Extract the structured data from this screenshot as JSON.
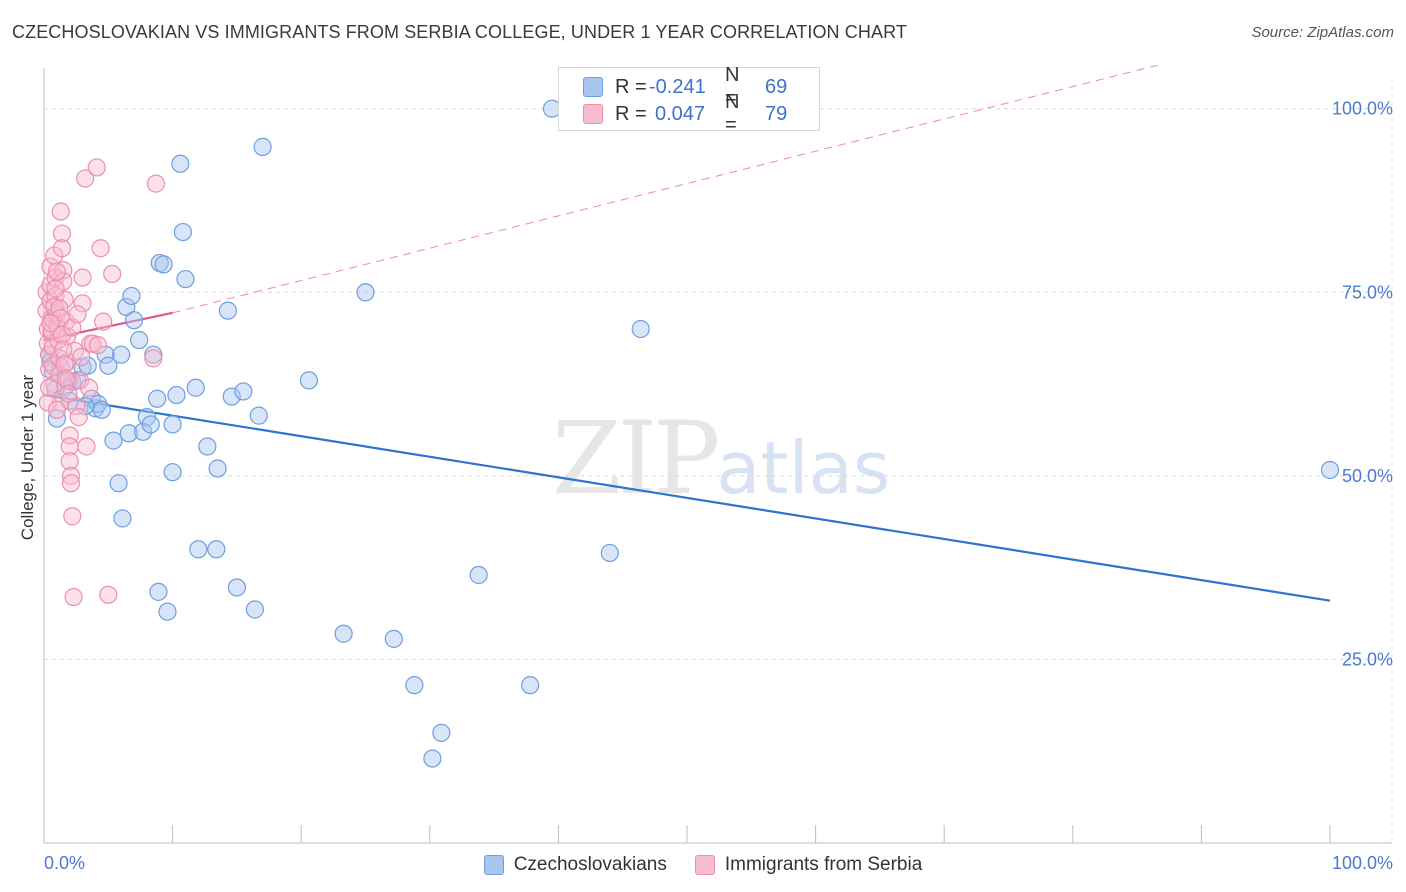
{
  "header": {
    "title": "CZECHOSLOVAKIAN VS IMMIGRANTS FROM SERBIA COLLEGE, UNDER 1 YEAR CORRELATION CHART",
    "source": "Source: ZipAtlas.com"
  },
  "watermark": {
    "zip": "ZIP",
    "atlas": "atlas"
  },
  "legend": {
    "rows": [
      {
        "r_label": "R =",
        "r_value": "-0.241",
        "n_label": "N =",
        "n_value": "69",
        "color": "#a8c6f0",
        "border": "#6e9ee0"
      },
      {
        "r_label": "R =",
        "r_value": "0.047",
        "n_label": "N =",
        "n_value": "79",
        "color": "#f8bcd0",
        "border": "#ec8fae"
      }
    ]
  },
  "bottom_legend": {
    "items": [
      {
        "label": "Czechoslovakians",
        "color": "#a8c6f0",
        "border": "#6e9ee0"
      },
      {
        "label": "Immigrants from Serbia",
        "color": "#f8bcd0",
        "border": "#ec8fae"
      }
    ]
  },
  "chart_data": {
    "type": "scatter",
    "title": "CZECHOSLOVAKIAN VS IMMIGRANTS FROM SERBIA COLLEGE, UNDER 1 YEAR CORRELATION CHART",
    "xlabel": "",
    "ylabel": "College, Under 1 year",
    "xlim": [
      0,
      100
    ],
    "ylim": [
      0,
      105
    ],
    "x_tick_labels": [
      "0.0%",
      "100.0%"
    ],
    "y_tick_labels": [
      "25.0%",
      "50.0%",
      "75.0%",
      "100.0%"
    ],
    "y_ticks": [
      25,
      50,
      75,
      100
    ],
    "series": [
      {
        "name": "Czechoslovakians",
        "color": "#6e9ee0",
        "fill": "#a8c6f0",
        "trend": {
          "x": [
            0,
            100
          ],
          "y": [
            61.0,
            33.0
          ],
          "color": "#2f73d0",
          "dashed_extension": false
        },
        "points": [
          [
            0.4,
            66.5
          ],
          [
            0.7,
            64.2
          ],
          [
            1.0,
            57.8
          ],
          [
            1.3,
            64.8
          ],
          [
            1.6,
            62.0
          ],
          [
            2.0,
            60.2
          ],
          [
            2.2,
            62.8
          ],
          [
            2.6,
            63.0
          ],
          [
            3.0,
            64.8
          ],
          [
            3.4,
            65.0
          ],
          [
            3.7,
            60.5
          ],
          [
            4.0,
            59.2
          ],
          [
            4.2,
            59.8
          ],
          [
            4.5,
            59.0
          ],
          [
            4.8,
            66.5
          ],
          [
            5.0,
            65.0
          ],
          [
            5.4,
            54.8
          ],
          [
            5.8,
            49.0
          ],
          [
            6.0,
            66.5
          ],
          [
            6.1,
            44.2
          ],
          [
            6.4,
            73.0
          ],
          [
            6.6,
            55.8
          ],
          [
            6.8,
            74.5
          ],
          [
            7.0,
            71.2
          ],
          [
            7.4,
            68.5
          ],
          [
            7.7,
            56.0
          ],
          [
            8.0,
            58.0
          ],
          [
            8.3,
            57.0
          ],
          [
            8.5,
            66.5
          ],
          [
            8.8,
            60.5
          ],
          [
            8.9,
            34.2
          ],
          [
            9.0,
            79.0
          ],
          [
            9.3,
            78.8
          ],
          [
            9.6,
            31.5
          ],
          [
            10.0,
            57.0
          ],
          [
            10.0,
            50.5
          ],
          [
            10.3,
            61.0
          ],
          [
            10.6,
            92.5
          ],
          [
            10.8,
            83.2
          ],
          [
            11.0,
            76.8
          ],
          [
            11.8,
            62.0
          ],
          [
            12.0,
            40.0
          ],
          [
            12.7,
            54.0
          ],
          [
            13.4,
            40.0
          ],
          [
            13.5,
            51.0
          ],
          [
            14.3,
            72.5
          ],
          [
            14.6,
            60.8
          ],
          [
            15.0,
            34.8
          ],
          [
            15.5,
            61.5
          ],
          [
            16.4,
            31.8
          ],
          [
            16.7,
            58.2
          ],
          [
            17.0,
            94.8
          ],
          [
            20.6,
            63.0
          ],
          [
            23.3,
            28.5
          ],
          [
            25.0,
            75.0
          ],
          [
            27.2,
            27.8
          ],
          [
            28.8,
            21.5
          ],
          [
            30.2,
            11.5
          ],
          [
            30.9,
            15.0
          ],
          [
            33.8,
            36.5
          ],
          [
            37.8,
            21.5
          ],
          [
            39.5,
            100.0
          ],
          [
            44.0,
            39.5
          ],
          [
            46.4,
            70.0
          ],
          [
            100.0,
            50.8
          ],
          [
            0.5,
            65.5
          ],
          [
            1.8,
            63.0
          ],
          [
            3.2,
            59.5
          ],
          [
            0.9,
            61.8
          ]
        ]
      },
      {
        "name": "Immigrants from Serbia",
        "color": "#ec8fae",
        "fill": "#f8bcd0",
        "trend": {
          "x": [
            0,
            10
          ],
          "y": [
            68.5,
            72.2
          ],
          "color": "#e0588a",
          "dashed_extension": true,
          "dashed_to": [
            100,
            106.0
          ]
        },
        "points": [
          [
            0.2,
            75.0
          ],
          [
            0.2,
            72.5
          ],
          [
            0.3,
            70.0
          ],
          [
            0.3,
            68.0
          ],
          [
            0.4,
            66.5
          ],
          [
            0.4,
            64.5
          ],
          [
            0.5,
            78.5
          ],
          [
            0.5,
            76.0
          ],
          [
            0.5,
            73.8
          ],
          [
            0.6,
            71.5
          ],
          [
            0.6,
            69.5
          ],
          [
            0.7,
            67.5
          ],
          [
            0.7,
            65.0
          ],
          [
            0.8,
            62.5
          ],
          [
            0.8,
            80.0
          ],
          [
            0.9,
            77.0
          ],
          [
            0.9,
            74.5
          ],
          [
            1.0,
            72.0
          ],
          [
            1.0,
            70.5
          ],
          [
            1.1,
            68.5
          ],
          [
            1.2,
            66.0
          ],
          [
            1.2,
            63.8
          ],
          [
            1.3,
            60.0
          ],
          [
            1.3,
            86.0
          ],
          [
            1.4,
            83.0
          ],
          [
            1.4,
            81.0
          ],
          [
            1.5,
            78.0
          ],
          [
            1.5,
            76.5
          ],
          [
            1.6,
            74.0
          ],
          [
            1.7,
            71.0
          ],
          [
            1.8,
            69.0
          ],
          [
            1.8,
            65.5
          ],
          [
            1.9,
            63.0
          ],
          [
            2.0,
            55.5
          ],
          [
            2.0,
            54.0
          ],
          [
            2.0,
            52.0
          ],
          [
            2.1,
            50.0
          ],
          [
            2.1,
            49.0
          ],
          [
            2.2,
            44.5
          ],
          [
            2.3,
            33.5
          ],
          [
            2.4,
            67.0
          ],
          [
            2.5,
            59.5
          ],
          [
            2.7,
            58.0
          ],
          [
            2.8,
            63.0
          ],
          [
            3.0,
            73.5
          ],
          [
            3.0,
            77.0
          ],
          [
            3.2,
            90.5
          ],
          [
            3.3,
            54.0
          ],
          [
            3.5,
            62.0
          ],
          [
            3.6,
            68.0
          ],
          [
            3.8,
            68.0
          ],
          [
            4.1,
            92.0
          ],
          [
            4.2,
            67.8
          ],
          [
            4.4,
            81.0
          ],
          [
            4.6,
            71.0
          ],
          [
            5.0,
            33.8
          ],
          [
            5.3,
            77.5
          ],
          [
            8.5,
            66.0
          ],
          [
            8.7,
            89.8
          ],
          [
            0.3,
            60.0
          ],
          [
            0.4,
            62.0
          ],
          [
            0.6,
            69.8
          ],
          [
            0.7,
            71.2
          ],
          [
            0.8,
            73.0
          ],
          [
            0.9,
            75.5
          ],
          [
            1.0,
            77.8
          ],
          [
            1.1,
            70.0
          ],
          [
            1.2,
            72.8
          ],
          [
            1.3,
            71.5
          ],
          [
            1.4,
            69.2
          ],
          [
            1.5,
            67.2
          ],
          [
            1.6,
            65.2
          ],
          [
            1.7,
            63.2
          ],
          [
            1.9,
            61.2
          ],
          [
            2.2,
            70.2
          ],
          [
            2.6,
            72.0
          ],
          [
            2.9,
            66.2
          ],
          [
            1.0,
            59.0
          ],
          [
            0.5,
            70.8
          ]
        ]
      }
    ]
  }
}
